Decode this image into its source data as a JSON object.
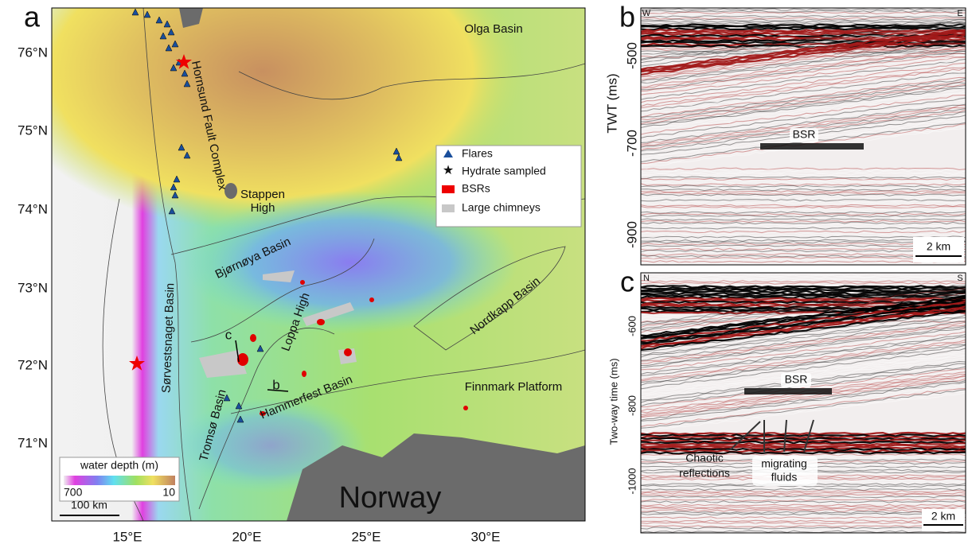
{
  "panels": {
    "a": {
      "label": "a",
      "latitudes": [
        "76°N",
        "75°N",
        "74°N",
        "73°N",
        "72°N",
        "71°N"
      ],
      "longitudes": [
        "15°E",
        "20°E",
        "25°E",
        "30°E"
      ],
      "places": [
        "Olga Basin",
        "Hornsund Fault Complex",
        "Stappen",
        "High",
        "Bjørnøya Basin",
        "Sørvestsnaget Basin",
        "Loppa High",
        "Nordkapp Basin",
        "Tromsø Basin",
        "Hammerfest Basin",
        "Finnmark Platform",
        "Norway"
      ],
      "profile_labels": [
        "c",
        "b"
      ],
      "legend": [
        "Flares",
        "Hydrate sampled",
        "BSRs",
        "Large chimneys"
      ],
      "depth_scale": {
        "title": "water depth (m)",
        "min": "700",
        "max": "10"
      },
      "scale_bar": "100 km"
    },
    "b": {
      "label": "b",
      "left": "W",
      "right": "E",
      "axis_title": "TWT (ms)",
      "ticks": [
        "-500",
        "-700",
        "-900"
      ],
      "annotations": [
        "BSR"
      ],
      "scale_bar": "2 km"
    },
    "c": {
      "label": "c",
      "left": "N",
      "right": "S",
      "axis_title": "Two-way time (ms)",
      "ticks": [
        "-600",
        "-800",
        "-1000"
      ],
      "annotations": [
        "BSR",
        "Chaotic",
        "reflections",
        "migrating",
        "fluids"
      ],
      "scale_bar": "2 km"
    }
  }
}
